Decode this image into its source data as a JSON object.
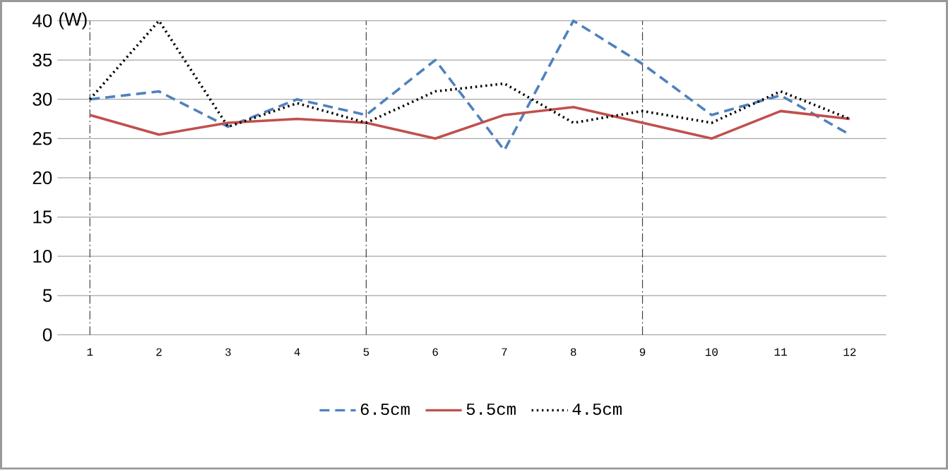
{
  "chart_data": {
    "type": "line",
    "ylabel": "(W)",
    "x": [
      1,
      2,
      3,
      4,
      5,
      6,
      7,
      8,
      9,
      10,
      11,
      12
    ],
    "xlim": [
      0.53,
      12.53
    ],
    "xticks": [
      1,
      2,
      3,
      4,
      5,
      6,
      7,
      8,
      9,
      10,
      11,
      12
    ],
    "ylim": [
      0,
      40
    ],
    "yticks": [
      0,
      5,
      10,
      15,
      20,
      25,
      30,
      35,
      40
    ],
    "grid": "y",
    "legend": "bottom",
    "marker": "none",
    "ref_lines": [
      {
        "axis": "x",
        "value": 1,
        "color": "#404040",
        "line_style": "dashdot"
      },
      {
        "axis": "x",
        "value": 5,
        "color": "#404040",
        "line_style": "dashdot"
      },
      {
        "axis": "x",
        "value": 9,
        "color": "#404040",
        "line_style": "dashdot"
      }
    ],
    "series": [
      {
        "name": "6.5cm",
        "color": "#4f81bd",
        "line_style": "dashed",
        "values": [
          30,
          31,
          26.5,
          30,
          28,
          35,
          23.5,
          40,
          34.5,
          28,
          30.5,
          25.5
        ]
      },
      {
        "name": "5.5cm",
        "color": "#c0504d",
        "line_style": "solid",
        "values": [
          28,
          25.5,
          27,
          27.5,
          27,
          25,
          28,
          29,
          27,
          25,
          28.5,
          27.5
        ]
      },
      {
        "name": "4.5cm",
        "color": "#000000",
        "line_style": "dotted",
        "values": [
          30,
          40,
          26.5,
          29.5,
          27,
          31,
          32,
          27,
          28.5,
          27,
          31,
          27.5
        ]
      }
    ]
  }
}
